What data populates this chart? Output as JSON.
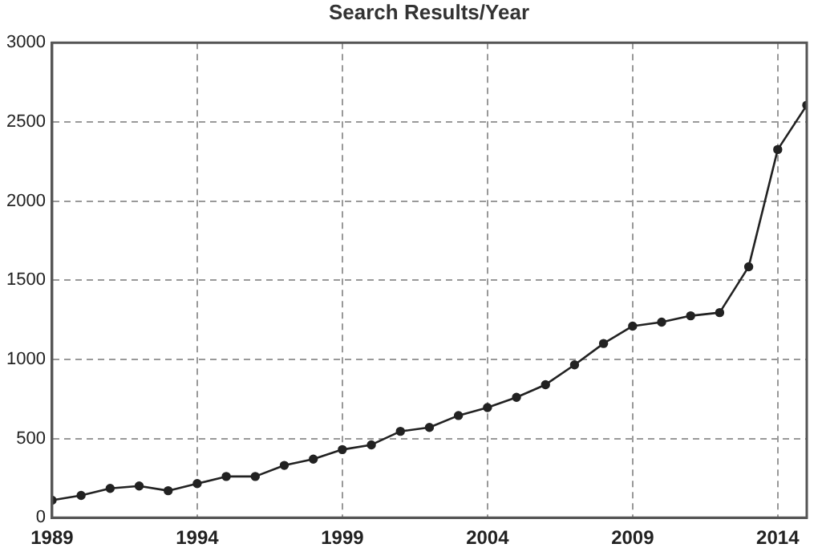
{
  "chart_data": {
    "type": "line",
    "title": "Search Results/Year",
    "x": [
      1989,
      1990,
      1991,
      1992,
      1993,
      1994,
      1995,
      1996,
      1997,
      1998,
      1999,
      2000,
      2001,
      2002,
      2003,
      2004,
      2005,
      2006,
      2007,
      2008,
      2009,
      2010,
      2011,
      2012,
      2013,
      2014,
      2015
    ],
    "series": [
      {
        "color": "#222222",
        "values": [
          110,
          140,
          185,
          200,
          170,
          215,
          260,
          260,
          330,
          370,
          430,
          460,
          545,
          570,
          645,
          695,
          760,
          840,
          965,
          1100,
          1210,
          1235,
          1275,
          1295,
          1585,
          2325,
          2605
        ]
      }
    ],
    "xlim": [
      1989,
      2015
    ],
    "xticks": [
      1989,
      1994,
      1999,
      2004,
      2009,
      2014
    ],
    "ylim": [
      0,
      3000
    ],
    "yticks": [
      0,
      500,
      1000,
      1500,
      2000,
      2500,
      3000
    ],
    "grid": true,
    "marker": "circle",
    "line_style": "solid",
    "legend": false
  }
}
